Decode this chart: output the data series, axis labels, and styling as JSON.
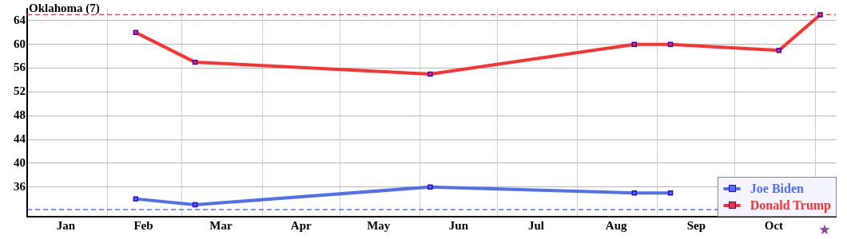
{
  "chart_data": {
    "type": "line",
    "title": "Oklahoma (7)",
    "series": [
      {
        "name": "Joe Biden",
        "color": "#5170f0",
        "x": [
          "--02-12",
          "--03-06",
          "--06-05",
          "--08-23",
          "--09-06"
        ],
        "values": [
          34,
          33,
          36,
          35,
          35
        ]
      },
      {
        "name": "Donald Trump",
        "color": "#ff3030",
        "x": [
          "--02-12",
          "--03-06",
          "--06-05",
          "--08-23",
          "--09-06",
          "--10-18",
          "--11-03"
        ],
        "values": [
          62,
          57,
          55,
          60,
          60,
          59,
          65
        ]
      }
    ],
    "xlim": [
      "--01-01",
      "--11-09"
    ],
    "xticks": [
      {
        "value": "--01-16",
        "label": "Jan"
      },
      {
        "value": "--02-01",
        "label": null
      },
      {
        "value": "--02-15",
        "label": "Feb"
      },
      {
        "value": "--03-01",
        "label": null
      },
      {
        "value": "--03-16",
        "label": "Mar"
      },
      {
        "value": "--04-01",
        "label": null
      },
      {
        "value": "--04-16",
        "label": "Apr"
      },
      {
        "value": "--05-01",
        "label": null
      },
      {
        "value": "--05-16",
        "label": "May"
      },
      {
        "value": "--06-01",
        "label": null
      },
      {
        "value": "--06-16",
        "label": "Jun"
      },
      {
        "value": "--07-01",
        "label": null
      },
      {
        "value": "--07-16",
        "label": "Jul"
      },
      {
        "value": "--08-01",
        "label": null
      },
      {
        "value": "--08-16",
        "label": "Aug"
      },
      {
        "value": "--09-01",
        "label": null
      },
      {
        "value": "--09-16",
        "label": "Sep"
      },
      {
        "value": "--10-01",
        "label": null
      },
      {
        "value": "--10-16",
        "label": "Oct"
      },
      {
        "value": "--11-01",
        "label": null
      }
    ],
    "ylim": [
      31,
      66
    ],
    "yticks": [
      36,
      40,
      44,
      48,
      52,
      56,
      60,
      64
    ],
    "ref_lines": [
      {
        "axis": "y",
        "value": 65,
        "color": "#ff3030",
        "line_style": "dashed"
      },
      {
        "axis": "y",
        "value": 32.2,
        "color": "#3355ff",
        "line_style": "dashed"
      }
    ],
    "grid": true,
    "legend": "bottom right",
    "marker": "square",
    "line_style": "solid"
  }
}
